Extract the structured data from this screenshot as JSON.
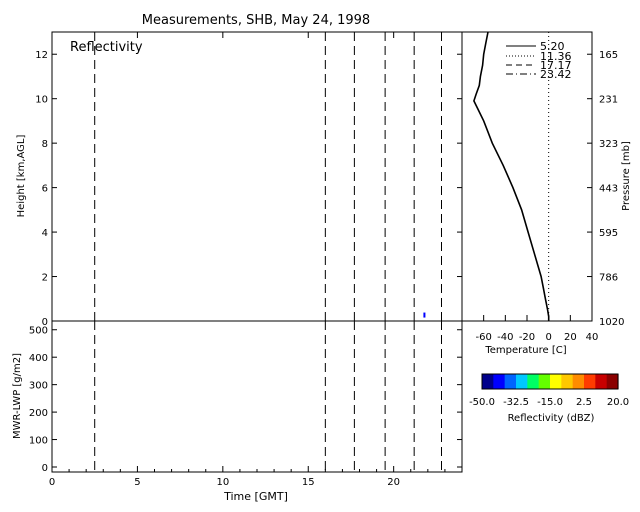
{
  "title": "Measurements, SHB, May 24, 1998",
  "chart_data": [
    {
      "id": "reflectivity",
      "type": "heatmap",
      "panel_label": "Reflectivity",
      "ylabel": "Height [km,AGL]",
      "xlim": [
        0,
        24
      ],
      "ylim": [
        0,
        13
      ],
      "yticks": [
        "0",
        "2",
        "4",
        "6",
        "8",
        "10",
        "12"
      ],
      "event_times": [
        2.5,
        16.0,
        17.7,
        19.5,
        21.2,
        22.8
      ],
      "echoes": [
        {
          "time": 21.8,
          "height_km": 0.2
        }
      ]
    },
    {
      "id": "lwp",
      "type": "line",
      "xlabel": "Time [GMT]",
      "ylabel": "MWR-LWP [g/m2]",
      "xlim": [
        0,
        24
      ],
      "ylim": [
        0,
        510
      ],
      "xticks": [
        "0",
        "5",
        "10",
        "15",
        "20"
      ],
      "yticks": [
        "0",
        "100",
        "200",
        "300",
        "400",
        "500"
      ],
      "event_times": [
        2.5,
        16.0,
        17.7,
        19.5,
        21.2,
        22.8
      ]
    },
    {
      "id": "sounding",
      "type": "line",
      "xlabel": "Temperature [C]",
      "ylabel_right": "Pressure [mb]",
      "xlim": [
        -80,
        40
      ],
      "ylim": [
        0,
        13
      ],
      "xticks": [
        "-60",
        "-40",
        "-20",
        "0",
        "20",
        "40"
      ],
      "yticks_right": [
        {
          "label": "1020",
          "height_km": 0
        },
        {
          "label": "786",
          "height_km": 2
        },
        {
          "label": "595",
          "height_km": 4
        },
        {
          "label": "443",
          "height_km": 6
        },
        {
          "label": "323",
          "height_km": 8
        },
        {
          "label": "231",
          "height_km": 10
        },
        {
          "label": "165",
          "height_km": 12
        }
      ],
      "legend": [
        "5.20",
        "11.36",
        "17.17",
        "23.42"
      ],
      "zero_line": 0,
      "series": [
        {
          "height_km": [
            0,
            0.2,
            0.5,
            1,
            1.5,
            2,
            3,
            4,
            5,
            6,
            7,
            8,
            9,
            9.6,
            9.9,
            10.2,
            10.6,
            11,
            11.5,
            12,
            12.5,
            13
          ],
          "temperature_c": [
            0,
            0,
            -1,
            -3,
            -5,
            -7,
            -13,
            -19,
            -25,
            -33,
            -42,
            -52,
            -60,
            -66,
            -69,
            -67,
            -64,
            -63,
            -61,
            -60,
            -58,
            -56
          ]
        }
      ]
    },
    {
      "id": "colorbar",
      "type": "heatmap",
      "label": "Reflectivity (dBZ)",
      "ticks": [
        "-50.0",
        "-32.5",
        "-15.0",
        "2.5",
        "20.0"
      ],
      "range": [
        -50,
        20
      ],
      "colors": [
        "#00008b",
        "#0000ff",
        "#0064ff",
        "#00c8ff",
        "#00ff64",
        "#64ff00",
        "#ffff00",
        "#ffc800",
        "#ff8c00",
        "#ff3c00",
        "#c80000",
        "#8b0000"
      ]
    }
  ]
}
